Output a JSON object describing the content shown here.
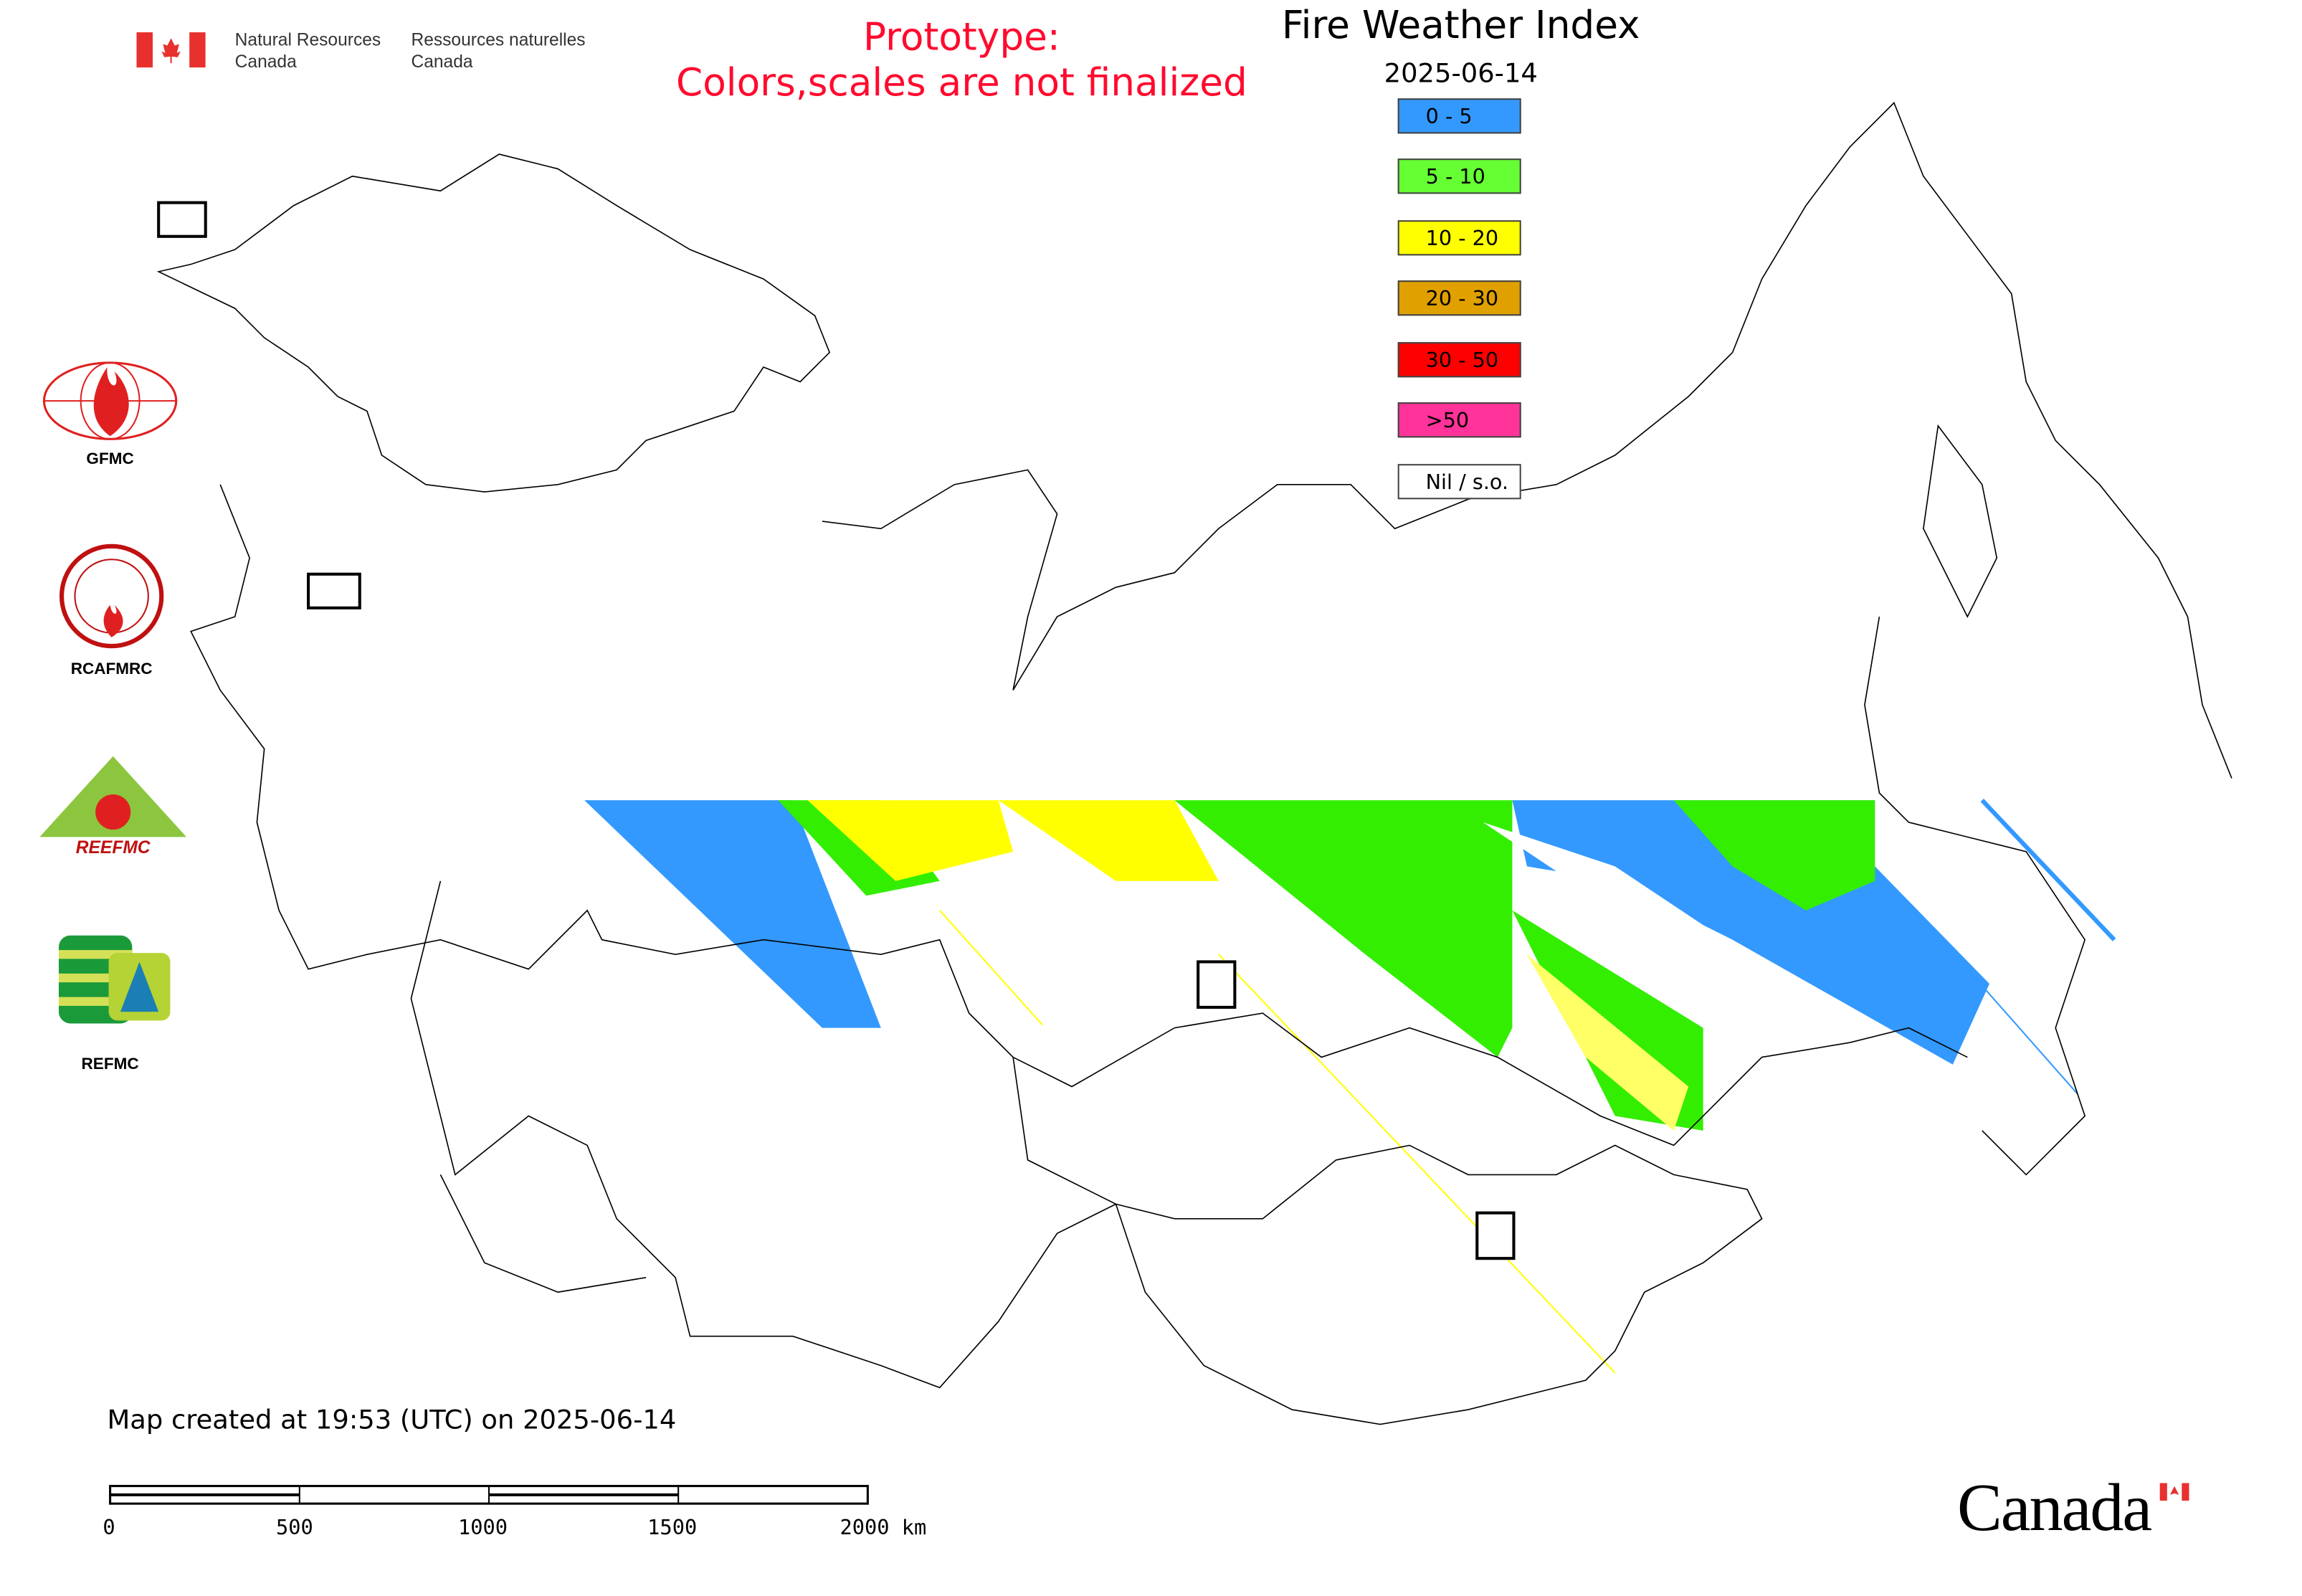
{
  "header": {
    "nrc_en_line1": "Natural Resources",
    "nrc_en_line2": "Canada",
    "nrc_fr_line1": "Ressources naturelles",
    "nrc_fr_line2": "Canada",
    "prototype_line1": "Prototype:",
    "prototype_line2": "Colors,scales are not finalized",
    "title": "Fire Weather Index",
    "date": "2025-06-14"
  },
  "legend": {
    "items": [
      {
        "label": "0 - 5",
        "color": "#3399ff"
      },
      {
        "label": "5 - 10",
        "color": "#66ff33"
      },
      {
        "label": "10 - 20",
        "color": "#ffff00"
      },
      {
        "label": "20 - 30",
        "color": "#e0a000"
      },
      {
        "label": "30 - 50",
        "color": "#ff0000"
      },
      {
        "label": ">50",
        "color": "#ff3399"
      },
      {
        "label": "Nil / s.o.",
        "color": "#ffffff"
      }
    ]
  },
  "logos": {
    "gfmc": "GFMC",
    "rcafmrc": "RCAFMRC",
    "reefmc": "REEFMC",
    "refmc": "REFMC"
  },
  "footer": {
    "created": "Map created at 19:53 (UTC) on 2025-06-14",
    "scale_labels": [
      "0",
      "500",
      "1000",
      "1500",
      "2000 km"
    ],
    "wordmark": "Canada"
  }
}
